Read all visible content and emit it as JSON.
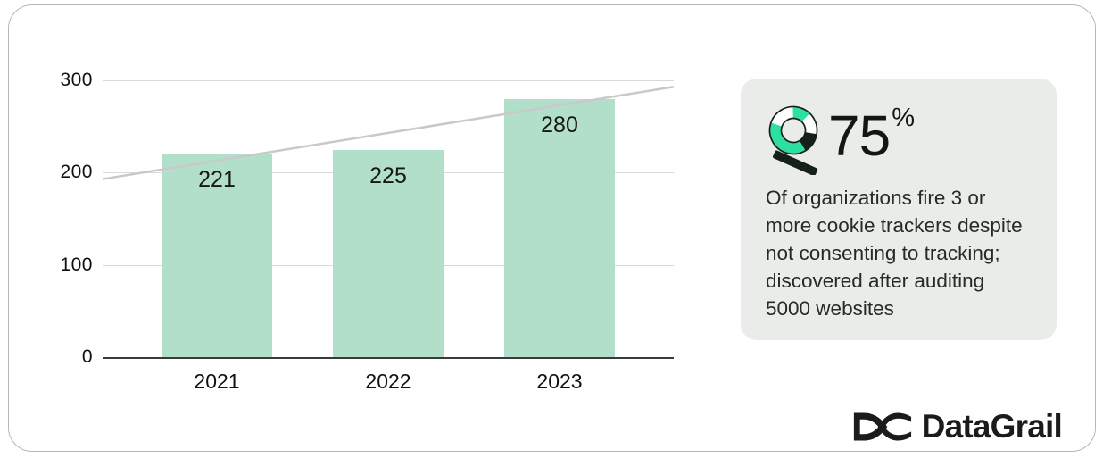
{
  "chart_data": {
    "type": "bar",
    "title": "",
    "categories": [
      "2021",
      "2022",
      "2023"
    ],
    "values": [
      221,
      225,
      280
    ],
    "value_labels": [
      "221",
      "225",
      "280"
    ],
    "xlabel": "",
    "ylabel": "",
    "y_ticks": [
      0,
      100,
      200,
      300
    ],
    "ylim": [
      0,
      300
    ],
    "grid": true,
    "legend": "none",
    "bar_color": "#b2dfc9",
    "gridline_color": "#d9d9d9",
    "axis_color": "#3a3a3a",
    "trendline": {
      "type": "linear",
      "start_value": 193,
      "end_value": 293,
      "color": "#c9c9c9"
    }
  },
  "stat_card": {
    "value": "75",
    "unit": "%",
    "description": "Of organizations fire 3 or more cookie trackers despite not consenting to tracking; discovered after auditing 5000 websites",
    "icon": "donut-chart-magnifier-icon",
    "background": "#e9ece9",
    "accent_green": "#2ee0a0"
  },
  "logo": {
    "brand": "DataGrail"
  }
}
